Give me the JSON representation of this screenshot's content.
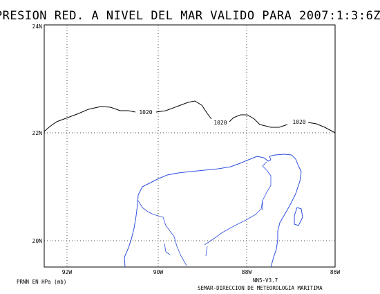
{
  "title": "PRESION RED. A NIVEL DEL MAR VALIDO PARA 2007:1:3:6Z",
  "lat_ticks": [
    "24N",
    "22N",
    "20N"
  ],
  "lon_ticks": [
    "92W",
    "90W",
    "88W",
    "86W"
  ],
  "isobar": {
    "label": "1020",
    "label_count": 3
  },
  "footer": {
    "left": "PRNN EN HPa (mb)",
    "right_line1": "NN5-V3.7",
    "right_line2": "SEMAR-DIRECCION DE METEOROLOGIA MARITIMA"
  },
  "colors": {
    "coastline": "#2c4ee0",
    "isobar": "#000000",
    "grid": "#000000"
  },
  "map_extent": {
    "lon_min": -92.5,
    "lon_max": -86,
    "lat_min": 19.6,
    "lat_max": 24
  },
  "gridlines": {
    "lon": [
      -92,
      -90,
      -88
    ],
    "lat": [
      22,
      20
    ],
    "style": "dotted"
  }
}
